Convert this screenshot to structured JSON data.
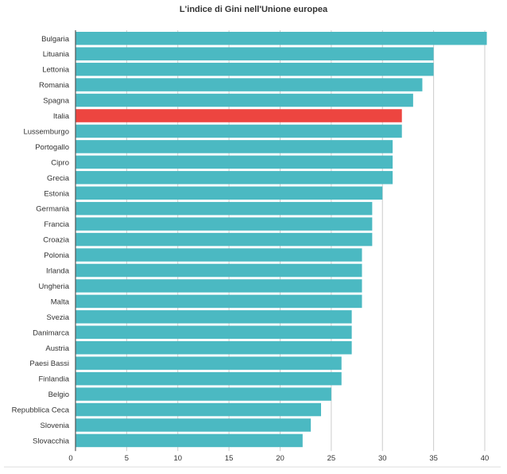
{
  "chart_data": {
    "type": "bar",
    "orientation": "horizontal",
    "title": "L'indice di Gini nell'Unione europea",
    "xlabel": "",
    "ylabel": "",
    "xlim": [
      0,
      40
    ],
    "x_ticks": [
      0,
      5,
      10,
      15,
      20,
      25,
      30,
      35,
      40
    ],
    "grid": true,
    "legend": "none",
    "categories": [
      "Bulgaria",
      "Lituania",
      "Lettonia",
      "Romania",
      "Spagna",
      "Italia",
      "Lussemburgo",
      "Portogallo",
      "Cipro",
      "Grecia",
      "Estonia",
      "Germania",
      "Francia",
      "Croazia",
      "Polonia",
      "Irlanda",
      "Ungheria",
      "Malta",
      "Svezia",
      "Danimarca",
      "Austria",
      "Paesi Bassi",
      "Finlandia",
      "Belgio",
      "Repubblica Ceca",
      "Slovenia",
      "Slovacchia"
    ],
    "values": [
      40.2,
      35.0,
      35.0,
      33.9,
      33.0,
      31.9,
      31.9,
      31.0,
      31.0,
      31.0,
      30.0,
      29.0,
      29.0,
      29.0,
      28.0,
      28.0,
      28.0,
      28.0,
      27.0,
      27.0,
      27.0,
      26.0,
      26.0,
      25.0,
      24.0,
      23.0,
      22.2
    ],
    "highlight_category": "Italia",
    "colors": {
      "bar": "#4bb9c2",
      "highlight": "#ed4540",
      "grid": "#cccccc",
      "axis": "#555555",
      "label": "#333333"
    }
  }
}
